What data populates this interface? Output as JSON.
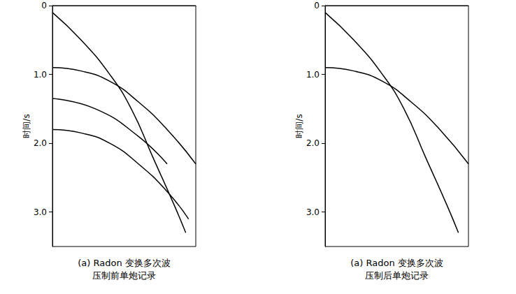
{
  "chart_data": [
    {
      "type": "line",
      "title": [
        "(a) Radon 变换多次波",
        "压制前单炮记录"
      ],
      "ylabel": "时间/s",
      "xlim": [
        0,
        1
      ],
      "ylim": [
        0,
        3.5
      ],
      "yticks": [
        0,
        {
          "value": 1,
          "label": "1.0"
        },
        {
          "value": 2,
          "label": "2.0"
        },
        {
          "value": 3,
          "label": "3.0"
        }
      ],
      "tick_labels": "y",
      "grid": false,
      "series": [
        {
          "color": "#000000",
          "x": [
            0,
            0.2,
            0.4,
            0.55,
            0.7,
            0.85,
            0.93
          ],
          "values": [
            0.1,
            0.5,
            1.0,
            1.5,
            2.2,
            2.9,
            3.3
          ]
        },
        {
          "color": "#000000",
          "x": [
            0,
            0.2,
            0.4,
            0.6,
            0.8,
            1.0
          ],
          "values": [
            0.9,
            0.95,
            1.1,
            1.4,
            1.8,
            2.3
          ]
        },
        {
          "color": "#000000",
          "x": [
            0,
            0.3,
            0.6,
            0.8
          ],
          "values": [
            1.35,
            1.5,
            1.9,
            2.3
          ]
        },
        {
          "color": "#000000",
          "x": [
            0,
            0.2,
            0.4,
            0.6,
            0.8,
            0.95
          ],
          "values": [
            1.8,
            1.85,
            2.0,
            2.3,
            2.7,
            3.1
          ]
        }
      ]
    },
    {
      "type": "line",
      "title": [
        "(a) Radon 变换多次波",
        "压制后单炮记录"
      ],
      "ylabel": "时间/s",
      "xlim": [
        0,
        1
      ],
      "ylim": [
        0,
        3.5
      ],
      "yticks": [
        0,
        {
          "value": 1,
          "label": "1.0"
        },
        {
          "value": 2,
          "label": "2.0"
        },
        {
          "value": 3,
          "label": "3.0"
        }
      ],
      "tick_labels": "y",
      "grid": false,
      "series": [
        {
          "color": "#000000",
          "x": [
            0,
            0.2,
            0.4,
            0.55,
            0.7,
            0.85,
            0.93
          ],
          "values": [
            0.1,
            0.5,
            1.0,
            1.5,
            2.2,
            2.9,
            3.3
          ]
        },
        {
          "color": "#000000",
          "x": [
            0,
            0.2,
            0.4,
            0.6,
            0.8,
            1.0
          ],
          "values": [
            0.9,
            0.95,
            1.1,
            1.4,
            1.8,
            2.3
          ]
        }
      ]
    }
  ]
}
